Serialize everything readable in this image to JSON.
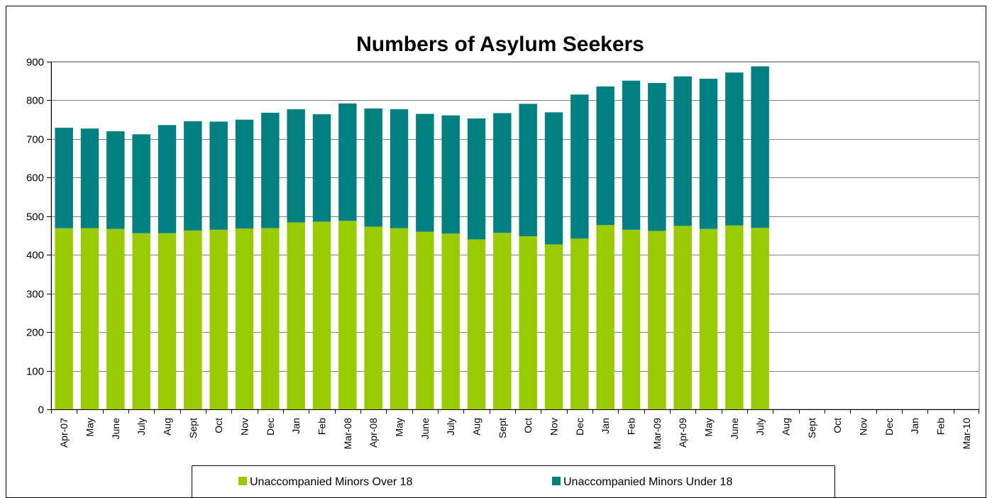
{
  "chart_data": {
    "type": "bar",
    "stacked": true,
    "title": "Numbers of Asylum Seekers",
    "xlabel": "",
    "ylabel": "",
    "ylim": [
      0,
      900
    ],
    "yticks": [
      0,
      100,
      200,
      300,
      400,
      500,
      600,
      700,
      800,
      900
    ],
    "grid": true,
    "legend_position": "bottom",
    "categories": [
      "Apr-07",
      "May",
      "June",
      "July",
      "Aug",
      "Sept",
      "Oct",
      "Nov",
      "Dec",
      "Jan",
      "Feb",
      "Mar-08",
      "Apr-08",
      "May",
      "June",
      "July",
      "Aug",
      "Sept",
      "Oct",
      "Nov",
      "Dec",
      "Jan",
      "Feb",
      "Mar-09",
      "Apr-09",
      "May",
      "June",
      "July",
      "Aug",
      "Sept",
      "Oct",
      "Nov",
      "Dec",
      "Jan",
      "Feb",
      "Mar-10"
    ],
    "series": [
      {
        "name": "Unaccompanied Minors Over 18",
        "color": "#99cc00",
        "values": [
          469,
          469,
          467,
          456,
          456,
          463,
          465,
          468,
          469,
          484,
          486,
          488,
          473,
          469,
          460,
          455,
          440,
          457,
          448,
          427,
          442,
          477,
          465,
          462,
          475,
          467,
          476,
          470,
          0,
          0,
          0,
          0,
          0,
          0,
          0,
          0
        ]
      },
      {
        "name": "Unaccompanied Minors Under 18",
        "color": "#008080",
        "values": [
          260,
          258,
          253,
          256,
          280,
          283,
          280,
          282,
          299,
          293,
          278,
          304,
          306,
          308,
          305,
          306,
          313,
          310,
          343,
          342,
          373,
          359,
          386,
          383,
          387,
          389,
          396,
          418,
          0,
          0,
          0,
          0,
          0,
          0,
          0,
          0
        ]
      }
    ]
  }
}
